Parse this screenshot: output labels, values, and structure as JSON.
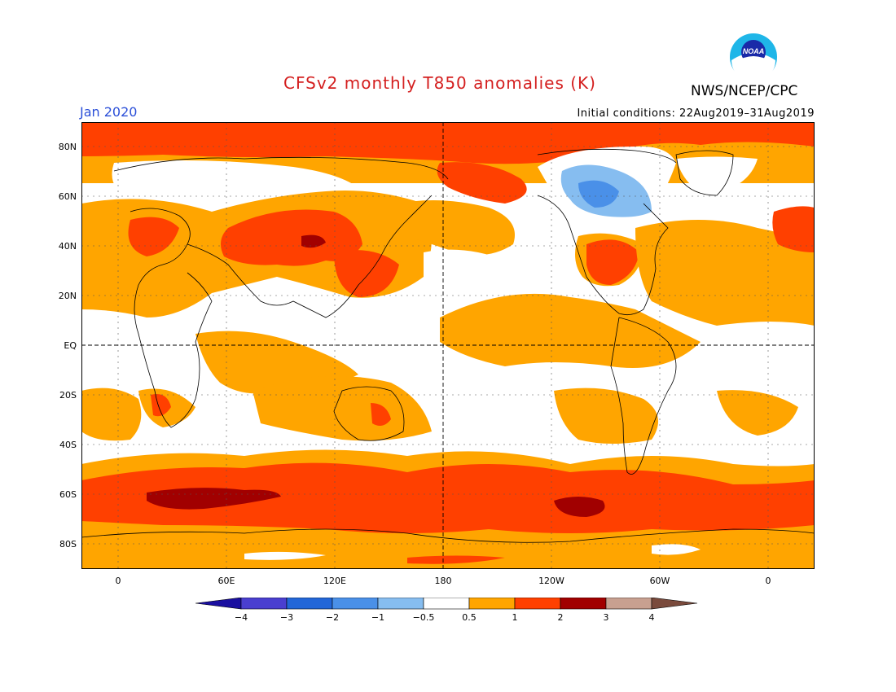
{
  "map": {
    "title": "CFSv2 monthly T850 anomalies (K)",
    "period": "Jan 2020",
    "initial_conditions": "Initial conditions: 22Aug2019–31Aug2019",
    "agency": "NWS/NCEP/CPC",
    "logo_icon": "noaa-logo-icon",
    "lat_labels": [
      "80N",
      "60N",
      "40N",
      "20N",
      "EQ",
      "20S",
      "40S",
      "60S",
      "80S"
    ],
    "lon_labels": [
      "0",
      "60E",
      "120E",
      "180",
      "120W",
      "60W",
      "0"
    ]
  },
  "colorbar": {
    "labels": [
      "−4",
      "−3",
      "−2",
      "−1",
      "−0.5",
      "0.5",
      "1",
      "2",
      "3",
      "4"
    ],
    "colors": [
      "#1a0fa0",
      "#4a3fd0",
      "#2266d8",
      "#4a90e8",
      "#86bdf0",
      "#ffffff",
      "#ffa500",
      "#ff4000",
      "#a10000",
      "#c8a090",
      "#7a4a3c"
    ]
  },
  "colors": {
    "anom_05_1": "#ffa500",
    "anom_1_2": "#ff4000",
    "anom_2_3": "#a10000",
    "anom_neg_05_1": "#86bdf0",
    "anom_neg_1_2": "#4a90e8",
    "title": "#d41f1f",
    "period": "#2b4fd8"
  }
}
